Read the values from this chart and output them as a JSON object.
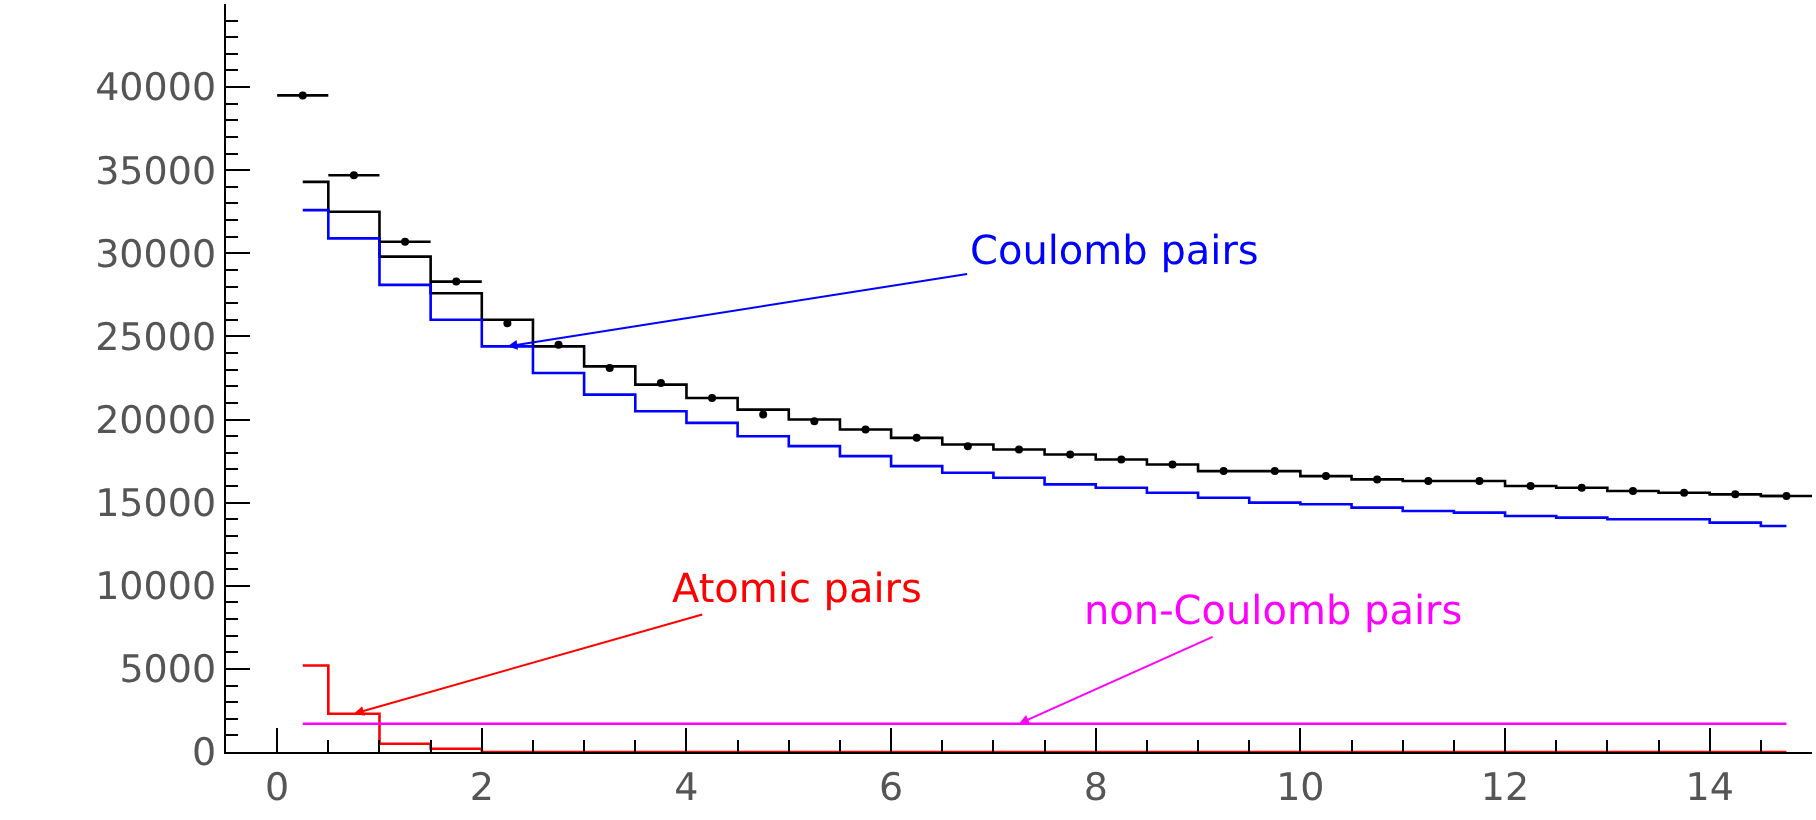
{
  "chart_data": {
    "type": "step",
    "x": [
      0.25,
      0.75,
      1.25,
      1.75,
      2.25,
      2.75,
      3.25,
      3.75,
      4.25,
      4.75,
      5.25,
      5.75,
      6.25,
      6.75,
      7.25,
      7.75,
      8.25,
      8.75,
      9.25,
      9.75,
      10.25,
      10.75,
      11.25,
      11.75,
      12.25,
      12.75,
      13.25,
      13.75,
      14.25,
      14.75
    ],
    "series": [
      {
        "color": "#000000",
        "values": [
          34300,
          32500,
          29800,
          27600,
          26000,
          24400,
          23200,
          22100,
          21300,
          20600,
          20000,
          19400,
          18900,
          18500,
          18200,
          17900,
          17600,
          17300,
          16900,
          16900,
          16600,
          16400,
          16300,
          16300,
          16000,
          15900,
          15700,
          15600,
          15500,
          15400
        ]
      },
      {
        "name": "Coulomb pairs",
        "color": "#0000ff",
        "values": [
          32600,
          30900,
          28100,
          26000,
          24400,
          22800,
          21500,
          20500,
          19800,
          19000,
          18400,
          17800,
          17200,
          16800,
          16500,
          16100,
          15900,
          15600,
          15300,
          15000,
          14900,
          14700,
          14500,
          14400,
          14200,
          14100,
          14000,
          14000,
          13800,
          13600
        ]
      },
      {
        "name": "Atomic pairs",
        "color": "#ff0000",
        "values": [
          5200,
          2300,
          500,
          200,
          0,
          0,
          0,
          0,
          0,
          0,
          0,
          0,
          0,
          0,
          0,
          0,
          0,
          0,
          0,
          0,
          0,
          0,
          0,
          0,
          0,
          0,
          0,
          0,
          0,
          0
        ]
      },
      {
        "name": "non-Coulomb pairs",
        "color": "#ff00ff",
        "values": [
          1700,
          1700,
          1700,
          1700,
          1700,
          1700,
          1700,
          1700,
          1700,
          1700,
          1700,
          1700,
          1700,
          1700,
          1700,
          1700,
          1700,
          1700,
          1700,
          1700,
          1700,
          1700,
          1700,
          1700,
          1700,
          1700,
          1700,
          1700,
          1700,
          1700
        ]
      },
      {
        "type": "scatter",
        "color": "#000000",
        "marker": "circle",
        "values": [
          39500,
          34700,
          30700,
          28300,
          25800,
          24500,
          23100,
          22200,
          21300,
          20300,
          19900,
          19400,
          18900,
          18400,
          18200,
          17900,
          17600,
          17300,
          16900,
          16900,
          16600,
          16400,
          16300,
          16300,
          16000,
          15900,
          15700,
          15600,
          15500,
          15400
        ],
        "xerrors": [
          0.25,
          0.25,
          0.25,
          0.25,
          null,
          null,
          null,
          null,
          null,
          null,
          null,
          null,
          null,
          null,
          null,
          null,
          null,
          null,
          null,
          null,
          null,
          null,
          null,
          null,
          null,
          null,
          null,
          null,
          null,
          0.25
        ]
      }
    ],
    "xlim": [
      -0.5,
      15
    ],
    "xticks": [
      0,
      2,
      4,
      6,
      8,
      10,
      12,
      14
    ],
    "ylim": [
      0,
      45000
    ],
    "yticks": [
      0,
      5000,
      10000,
      15000,
      20000,
      25000,
      30000,
      35000,
      40000
    ]
  }
}
